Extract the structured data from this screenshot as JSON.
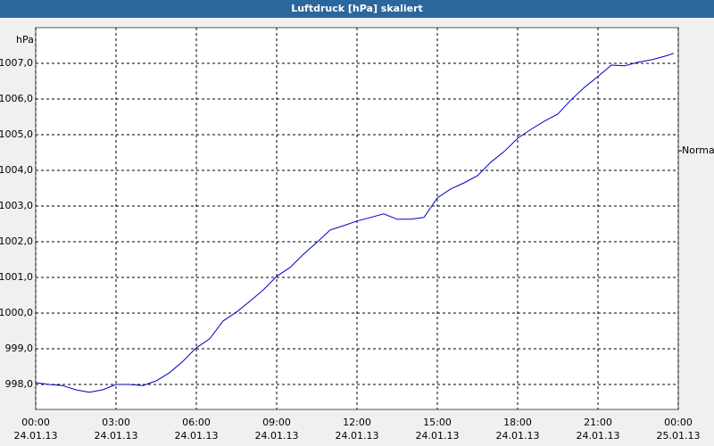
{
  "chart_data": {
    "type": "line",
    "title": "Luftdruck [hPa] skaliert",
    "y_unit": "hPa",
    "right_label": "Normal",
    "color": "#0000c0",
    "grid": true,
    "ylim": [
      997.3,
      1008.0
    ],
    "yticks": [
      {
        "value": 998,
        "label": "998,0"
      },
      {
        "value": 999,
        "label": "999,0"
      },
      {
        "value": 1000,
        "label": "1000,0"
      },
      {
        "value": 1001,
        "label": "1001,0"
      },
      {
        "value": 1002,
        "label": "1002,0"
      },
      {
        "value": 1003,
        "label": "1003,0"
      },
      {
        "value": 1004,
        "label": "1004,0"
      },
      {
        "value": 1005,
        "label": "1005,0"
      },
      {
        "value": 1006,
        "label": "1006,0"
      },
      {
        "value": 1007,
        "label": "1007,0"
      }
    ],
    "xlim": [
      0,
      24
    ],
    "xticks": [
      {
        "value": 0,
        "label": "00:00",
        "date": "24.01.13"
      },
      {
        "value": 3,
        "label": "03:00",
        "date": "24.01.13"
      },
      {
        "value": 6,
        "label": "06:00",
        "date": "24.01.13"
      },
      {
        "value": 9,
        "label": "09:00",
        "date": "24.01.13"
      },
      {
        "value": 12,
        "label": "12:00",
        "date": "24.01.13"
      },
      {
        "value": 15,
        "label": "15:00",
        "date": "24.01.13"
      },
      {
        "value": 18,
        "label": "18:00",
        "date": "24.01.13"
      },
      {
        "value": 21,
        "label": "21:00",
        "date": "24.01.13"
      },
      {
        "value": 24,
        "label": "00:00",
        "date": "25.01.13"
      }
    ],
    "x": [
      0,
      0.5,
      1,
      1.5,
      2,
      2.5,
      3,
      3.5,
      4,
      4.5,
      5,
      5.5,
      6,
      6.5,
      7,
      7.5,
      8,
      8.5,
      9,
      9.5,
      10,
      10.5,
      11,
      11.5,
      12,
      12.5,
      13,
      13.5,
      14,
      14.5,
      15,
      15.5,
      16,
      16.5,
      17,
      17.5,
      18,
      18.5,
      19,
      19.5,
      20,
      20.5,
      21,
      21.5,
      22,
      22.5,
      23,
      23.5,
      23.83
    ],
    "values": [
      998.05,
      998.0,
      997.97,
      997.85,
      997.78,
      997.85,
      998.0,
      998.0,
      997.97,
      998.1,
      998.33,
      998.65,
      999.03,
      999.28,
      999.78,
      1000.03,
      1000.33,
      1000.65,
      1001.03,
      1001.28,
      1001.65,
      1001.98,
      1002.33,
      1002.45,
      1002.58,
      1002.68,
      1002.78,
      1002.63,
      1002.63,
      1002.68,
      1003.23,
      1003.48,
      1003.65,
      1003.85,
      1004.23,
      1004.53,
      1004.9,
      1005.15,
      1005.38,
      1005.58,
      1005.98,
      1006.33,
      1006.63,
      1006.95,
      1006.93,
      1007.03,
      1007.1,
      1007.2,
      1007.28
    ]
  }
}
